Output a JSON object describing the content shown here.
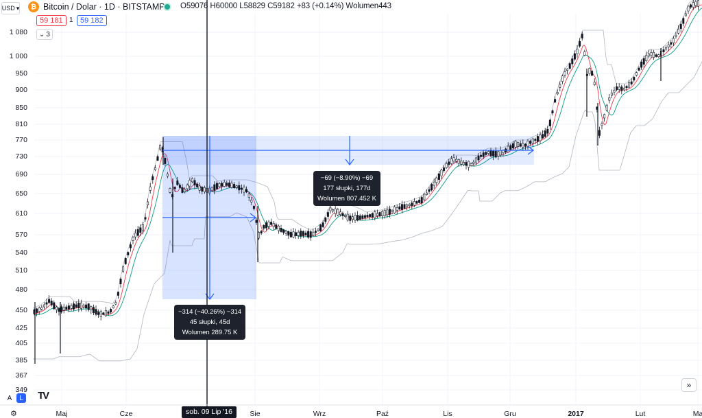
{
  "legend": {
    "currency": "USD",
    "coin_icon": "bitcoin-icon",
    "symbol": "Bitcoin / Dolar · 1D · BITSTAMP",
    "ohlc": "O59076 H60000 L58829 C59182 +83 (+0.14%) Wolumen443",
    "sell_price": "59 181",
    "spread": "1",
    "buy_price": "59 182",
    "collapse_count": "3"
  },
  "y_axis": {
    "labels": [
      "1 080",
      "1 000",
      "950",
      "900",
      "850",
      "810",
      "770",
      "730",
      "690",
      "650",
      "610",
      "570",
      "540",
      "510",
      "480",
      "450",
      "425",
      "405",
      "385",
      "367",
      "349"
    ]
  },
  "x_axis": {
    "labels": [
      {
        "text": "Maj",
        "bold": false
      },
      {
        "text": "Cze",
        "bold": false
      },
      {
        "text": "Sie",
        "bold": false
      },
      {
        "text": "Wrz",
        "bold": false
      },
      {
        "text": "Paź",
        "bold": false
      },
      {
        "text": "Lis",
        "bold": false
      },
      {
        "text": "Gru",
        "bold": false
      },
      {
        "text": "2017",
        "bold": true
      },
      {
        "text": "Lut",
        "bold": false
      },
      {
        "text": "Ma",
        "bold": false
      }
    ]
  },
  "crosshair_date": "sob. 09 Lip '16",
  "measure_tools": [
    {
      "line1": "−314 (−40.26%) −314",
      "line2": "45 słupki, 45d",
      "line3": "Wolumen 289.75 K"
    },
    {
      "line1": "−69 (−8.90%) −69",
      "line2": "177 słupki, 177d",
      "line3": "Wolumen 807.452 K"
    }
  ],
  "bottom_left": {
    "auto_label": "A",
    "log_label": "L",
    "logo_text": "TV"
  },
  "colors": {
    "up": "#ffffff",
    "down": "#131722",
    "ma_fast": "#f23645",
    "ma_slow": "#089981",
    "channel": "#b2b5be",
    "measure_fill": "#2962ff",
    "measure_line": "#2962ff"
  },
  "icons": {
    "settings": "gear-icon",
    "scroll": "double-chevron-right-icon"
  }
}
